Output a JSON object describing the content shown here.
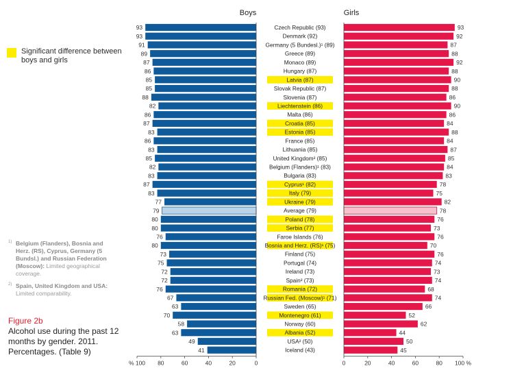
{
  "chart_data": {
    "type": "bar",
    "title_left": "Boys",
    "title_right": "Girls",
    "xlim": [
      0,
      100
    ],
    "left_ticks": [
      "% 100",
      "80",
      "60",
      "40",
      "20",
      "0"
    ],
    "right_ticks": [
      "0",
      "20",
      "40",
      "60",
      "80",
      "100 %"
    ],
    "categories": [
      "Czech Republic (93)",
      "Denmark (92)",
      "Germany (5 Bundesl.)¹ (89)",
      "Greece (89)",
      "Monaco (89)",
      "Hungary (87)",
      "Latvia (87)",
      "Slovak Republic (87)",
      "Slovenia (87)",
      "Liechtenstein (86)",
      "Malta (86)",
      "Croatia (85)",
      "Estonia (85)",
      "France (85)",
      "Lithuania (85)",
      "United Kingdom² (85)",
      "Belgium (Flanders)¹ (83)",
      "Bulgaria (83)",
      "Cyprus¹ (82)",
      "Italy (79)",
      "Ukraine (79)",
      "Average (79)",
      "Poland (78)",
      "Serbia (77)",
      "Faroe Islands (76)",
      "Bosnia and Herz. (RS)¹ (75)",
      "Finland (75)",
      "Portugal (74)",
      "Ireland (73)",
      "Spain² (73)",
      "Romania (72)",
      "Russian Fed. (Moscow)¹ (71)",
      "Sweden (65)",
      "Montenegro (61)",
      "Norway (60)",
      "Albania (52)",
      "USA² (50)",
      "Iceland (43)"
    ],
    "highlighted": [
      false,
      false,
      false,
      false,
      false,
      false,
      true,
      false,
      false,
      true,
      false,
      true,
      true,
      false,
      false,
      false,
      false,
      false,
      true,
      true,
      true,
      false,
      true,
      true,
      false,
      true,
      false,
      false,
      false,
      false,
      true,
      true,
      false,
      true,
      false,
      true,
      false,
      false
    ],
    "is_average": [
      false,
      false,
      false,
      false,
      false,
      false,
      false,
      false,
      false,
      false,
      false,
      false,
      false,
      false,
      false,
      false,
      false,
      false,
      false,
      false,
      false,
      true,
      false,
      false,
      false,
      false,
      false,
      false,
      false,
      false,
      false,
      false,
      false,
      false,
      false,
      false,
      false,
      false
    ],
    "series": [
      {
        "name": "Boys",
        "values": [
          93,
          93,
          91,
          89,
          87,
          86,
          85,
          85,
          88,
          82,
          86,
          87,
          83,
          86,
          83,
          85,
          82,
          83,
          87,
          83,
          77,
          79,
          80,
          80,
          76,
          80,
          73,
          75,
          72,
          72,
          76,
          67,
          63,
          70,
          58,
          63,
          49,
          41
        ]
      },
      {
        "name": "Girls",
        "values": [
          93,
          92,
          87,
          88,
          92,
          88,
          90,
          88,
          86,
          90,
          86,
          84,
          88,
          84,
          87,
          85,
          84,
          83,
          78,
          75,
          82,
          78,
          76,
          73,
          76,
          70,
          76,
          74,
          73,
          74,
          68,
          74,
          66,
          52,
          62,
          44,
          50,
          45
        ]
      }
    ],
    "colors": {
      "boys": "#0f5a9a",
      "girls": "#e5174a",
      "boys_avg": "#b9d3ea",
      "girls_avg": "#f8c0cc",
      "highlight": "#ffed00"
    }
  },
  "legend": {
    "label": "Significant difference between boys and girls"
  },
  "footnotes": [
    {
      "mark": "1)",
      "bold": "Belgium (Flanders), Bosnia and Herz. (RS), Cyprus, Germany (5 Bundsl.) and Russian Federation (Moscow):",
      "text": " Limited geographical coverage."
    },
    {
      "mark": "2)",
      "bold": "Spain, United Kingdom and USA:",
      "text": " Limited comparability."
    }
  ],
  "figure": {
    "label": "Figure 2b",
    "caption": "Alcohol use during the past 12 months by gender. 2011. Percentages. (Table 9)"
  }
}
